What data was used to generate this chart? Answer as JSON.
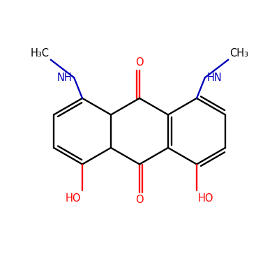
{
  "bg_color": "#FFFFFF",
  "bond_color": "#000000",
  "o_color": "#FF0000",
  "n_color": "#0000BB",
  "lw": 1.7,
  "figsize": [
    4.0,
    4.0
  ],
  "dpi": 100,
  "xlim": [
    0,
    10
  ],
  "ylim": [
    0,
    10
  ]
}
